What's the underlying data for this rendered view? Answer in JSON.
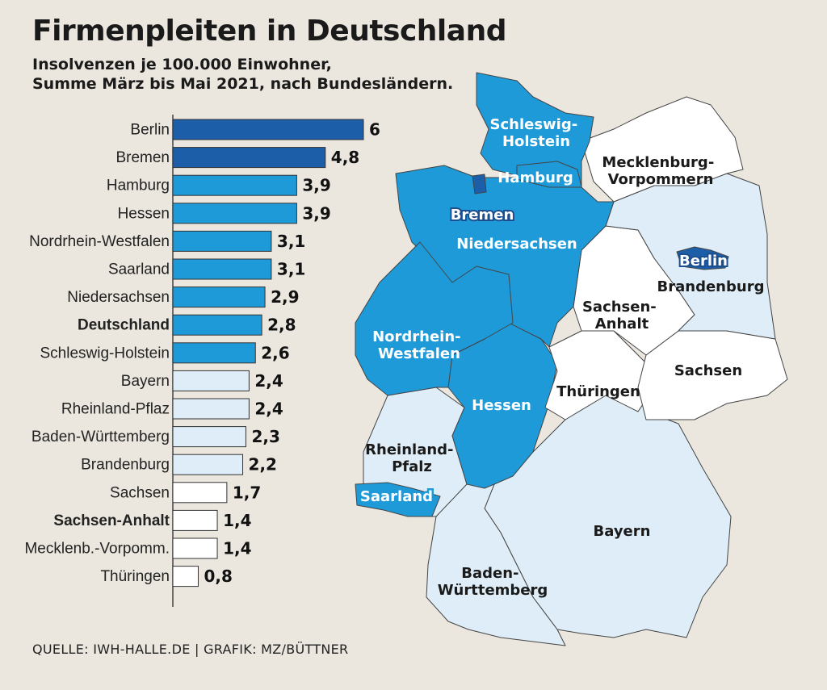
{
  "title": "Firmenpleiten in Deutschland",
  "subtitle_line1": "Insolvenzen je 100.000 Einwohner,",
  "subtitle_line2": "Summe März bis Mai 2021, nach Bundesländern.",
  "source": "QUELLE: IWH-HALLE.DE | GRAFIK: MZ/BÜTTNER",
  "colors": {
    "dark_blue": "#1c5fa8",
    "blue": "#1f9ad9",
    "light_blue": "#deedf7",
    "white": "#ffffff",
    "outline": "#444444"
  },
  "chart_data": {
    "type": "bar",
    "orientation": "horizontal",
    "title": "Firmenpleiten in Deutschland",
    "subtitle": "Insolvenzen je 100.000 Einwohner, Summe März bis Mai 2021, nach Bundesländern.",
    "xlim": [
      0,
      6.0
    ],
    "categories": [
      "Berlin",
      "Bremen",
      "Hamburg",
      "Hessen",
      "Nordrhein-Westfalen",
      "Saarland",
      "Niedersachsen",
      "Deutschland",
      "Schleswig-Holstein",
      "Bayern",
      "Rheinland-Pflaz",
      "Baden-Württemberg",
      "Brandenburg",
      "Sachsen",
      "Sachsen-Anhalt",
      "Mecklenb.-Vorpomm.",
      "Thüringen"
    ],
    "values": [
      6.0,
      4.8,
      3.9,
      3.9,
      3.1,
      3.1,
      2.9,
      2.8,
      2.6,
      2.4,
      2.4,
      2.3,
      2.2,
      1.7,
      1.4,
      1.4,
      0.8
    ],
    "value_labels": [
      "6,0",
      "4,8",
      "3,9",
      "3,9",
      "3,1",
      "3,1",
      "2,9",
      "2,8",
      "2,6",
      "2,4",
      "2,4",
      "2,3",
      "2,2",
      "1,7",
      "1,4",
      "1,4",
      "0,8"
    ],
    "color_class": [
      "dark_blue",
      "dark_blue",
      "blue",
      "blue",
      "blue",
      "blue",
      "blue",
      "blue",
      "blue",
      "light_blue",
      "light_blue",
      "light_blue",
      "light_blue",
      "white",
      "white",
      "white",
      "white"
    ],
    "bold_labels": [
      "Deutschland",
      "Sachsen-Anhalt"
    ]
  },
  "map": {
    "labels": {
      "schleswig_holstein": [
        "Schleswig-",
        "Holstein"
      ],
      "hamburg": "Hamburg",
      "mecklenburg_vorpommern": [
        "Mecklenburg-",
        "Vorpommern"
      ],
      "bremen": "Bremen",
      "niedersachsen": "Niedersachsen",
      "berlin": "Berlin",
      "brandenburg": "Brandenburg",
      "sachsen_anhalt": [
        "Sachsen-",
        "Anhalt"
      ],
      "nordrhein_westfalen": [
        "Nordrhein-",
        "Westfalen"
      ],
      "sachsen": "Sachsen",
      "thueringen": "Thüringen",
      "hessen": "Hessen",
      "rheinland_pfalz": [
        "Rheinland-",
        "Pfalz"
      ],
      "saarland": "Saarland",
      "bayern": "Bayern",
      "baden_wuerttemberg": [
        "Baden-",
        "Württemberg"
      ]
    }
  }
}
